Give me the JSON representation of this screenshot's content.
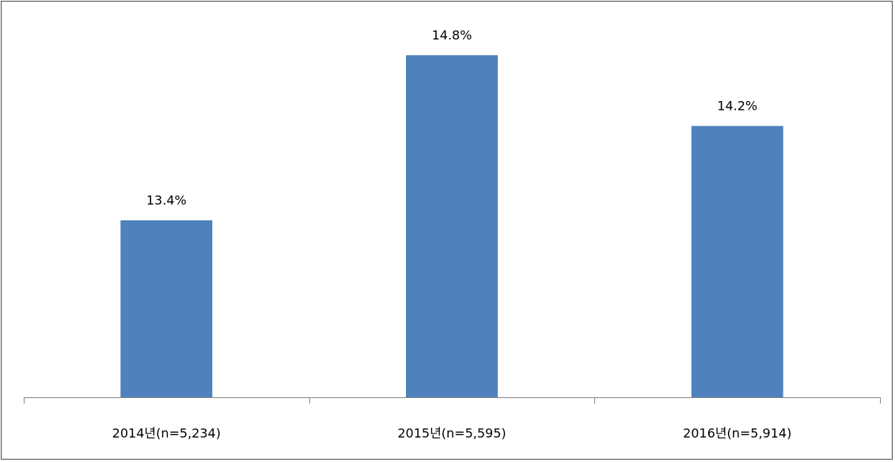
{
  "chart_data": {
    "type": "bar",
    "categories": [
      "2014년(n=5,234)",
      "2015년(n=5,595)",
      "2016년(n=5,914)"
    ],
    "values": [
      13.4,
      14.8,
      14.2
    ],
    "data_labels": [
      "13.4%",
      "14.8%",
      "14.2%"
    ],
    "title": "",
    "xlabel": "",
    "ylabel": "",
    "ylim": [
      11.9,
      15.0
    ],
    "grid": false,
    "legend": "none",
    "bar_color": "#4f81bd",
    "axis_color": "#868686"
  }
}
